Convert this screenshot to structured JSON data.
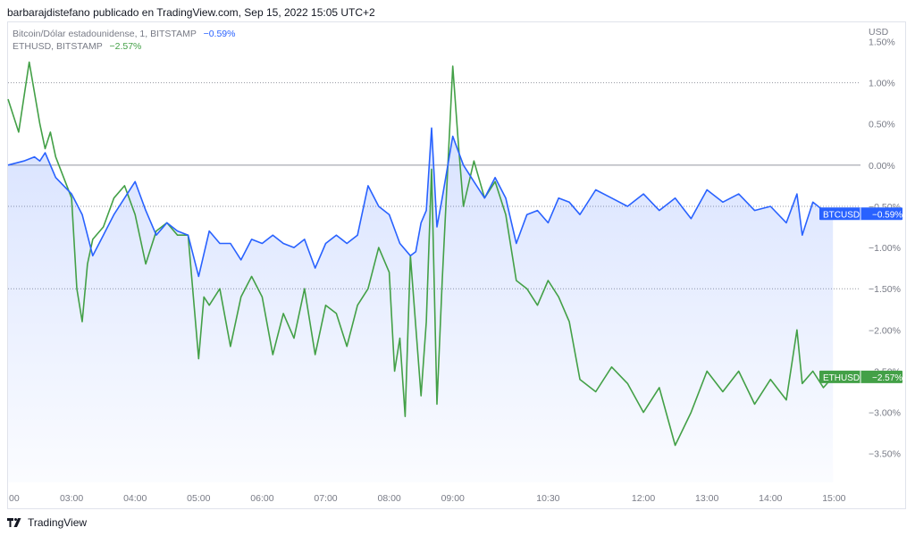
{
  "header": {
    "text": "barbarajdistefano publicado en TradingView.com, Sep 15, 2022 15:05 UTC+2"
  },
  "footer": {
    "brand": "TradingView",
    "logo_icon": "tradingview-logo-icon"
  },
  "legend": [
    {
      "label": "Bitcoin/Dólar estadounidense, 1, BITSTAMP",
      "value": "−0.59%",
      "value_color": "#2962ff"
    },
    {
      "label": "ETHUSD, BITSTAMP",
      "value": "−2.57%",
      "value_color": "#43a047"
    }
  ],
  "chart_data": {
    "type": "line",
    "yunit": "USD",
    "ylim": [
      -3.85,
      1.7
    ],
    "yticks": [
      1.5,
      1.0,
      0.5,
      0.0,
      -0.5,
      -1.0,
      -1.5,
      -2.0,
      -2.5,
      -3.0,
      -3.5
    ],
    "ytick_labels": [
      "1.50%",
      "1.00%",
      "0.50%",
      "0.00%",
      "−0.50%",
      "−1.00%",
      "−1.50%",
      "−2.00%",
      "−2.50%",
      "−3.00%",
      "−3.50%"
    ],
    "xlim": [
      "02:00",
      "15:25"
    ],
    "xticks": [
      "03:00",
      "04:00",
      "05:00",
      "06:00",
      "07:00",
      "08:00",
      "09:00",
      "10:30",
      "12:00",
      "13:00",
      "14:00",
      "15:00"
    ],
    "xticks_partial": [
      "00"
    ],
    "dotted_gridlines": [
      1.0,
      -0.5,
      -1.5
    ],
    "zero_line": 0.0,
    "series": [
      {
        "name": "BTCUSD",
        "color": "#2962ff",
        "last_value_label": "−0.59%",
        "x": [
          "02:00",
          "02:15",
          "02:25",
          "02:30",
          "02:35",
          "02:45",
          "03:00",
          "03:10",
          "03:20",
          "03:30",
          "03:40",
          "03:50",
          "04:00",
          "04:10",
          "04:20",
          "04:30",
          "04:40",
          "04:50",
          "05:00",
          "05:10",
          "05:20",
          "05:30",
          "05:40",
          "05:50",
          "06:00",
          "06:10",
          "06:20",
          "06:30",
          "06:40",
          "06:50",
          "07:00",
          "07:10",
          "07:20",
          "07:30",
          "07:40",
          "07:50",
          "08:00",
          "08:10",
          "08:20",
          "08:25",
          "08:30",
          "08:35",
          "08:40",
          "08:45",
          "08:50",
          "09:00",
          "09:10",
          "09:20",
          "09:30",
          "09:40",
          "09:50",
          "10:00",
          "10:10",
          "10:20",
          "10:30",
          "10:40",
          "10:50",
          "11:00",
          "11:15",
          "11:30",
          "11:45",
          "12:00",
          "12:15",
          "12:30",
          "12:45",
          "13:00",
          "13:15",
          "13:30",
          "13:45",
          "14:00",
          "14:15",
          "14:25",
          "14:30",
          "14:40",
          "14:50",
          "14:59"
        ],
        "values": [
          0.0,
          0.05,
          0.1,
          0.05,
          0.15,
          -0.15,
          -0.35,
          -0.6,
          -1.1,
          -0.85,
          -0.6,
          -0.4,
          -0.2,
          -0.55,
          -0.85,
          -0.7,
          -0.8,
          -0.85,
          -1.35,
          -0.8,
          -0.95,
          -0.95,
          -1.15,
          -0.9,
          -0.95,
          -0.85,
          -0.95,
          -1.0,
          -0.9,
          -1.25,
          -0.95,
          -0.85,
          -0.95,
          -0.85,
          -0.25,
          -0.5,
          -0.6,
          -0.95,
          -1.1,
          -1.05,
          -0.7,
          -0.55,
          0.45,
          -0.75,
          -0.4,
          0.35,
          0.0,
          -0.2,
          -0.4,
          -0.15,
          -0.4,
          -0.95,
          -0.6,
          -0.55,
          -0.7,
          -0.4,
          -0.45,
          -0.6,
          -0.3,
          -0.4,
          -0.5,
          -0.35,
          -0.55,
          -0.4,
          -0.65,
          -0.3,
          -0.45,
          -0.35,
          -0.55,
          -0.5,
          -0.7,
          -0.35,
          -0.85,
          -0.45,
          -0.55,
          -0.59
        ]
      },
      {
        "name": "ETHUSD",
        "color": "#43a047",
        "last_value_label": "−2.57%",
        "x": [
          "02:00",
          "02:10",
          "02:20",
          "02:30",
          "02:35",
          "02:40",
          "02:45",
          "03:00",
          "03:05",
          "03:10",
          "03:15",
          "03:20",
          "03:30",
          "03:40",
          "03:50",
          "04:00",
          "04:10",
          "04:20",
          "04:30",
          "04:40",
          "04:50",
          "05:00",
          "05:05",
          "05:10",
          "05:20",
          "05:30",
          "05:40",
          "05:50",
          "06:00",
          "06:10",
          "06:20",
          "06:30",
          "06:40",
          "06:50",
          "07:00",
          "07:10",
          "07:20",
          "07:30",
          "07:40",
          "07:50",
          "08:00",
          "08:05",
          "08:10",
          "08:15",
          "08:20",
          "08:30",
          "08:35",
          "08:40",
          "08:45",
          "08:50",
          "09:00",
          "09:05",
          "09:10",
          "09:20",
          "09:30",
          "09:40",
          "09:50",
          "10:00",
          "10:10",
          "10:20",
          "10:30",
          "10:40",
          "10:50",
          "11:00",
          "11:15",
          "11:30",
          "11:45",
          "12:00",
          "12:15",
          "12:30",
          "12:45",
          "13:00",
          "13:15",
          "13:30",
          "13:45",
          "14:00",
          "14:15",
          "14:25",
          "14:30",
          "14:40",
          "14:50",
          "14:59"
        ],
        "values": [
          0.8,
          0.4,
          1.25,
          0.5,
          0.2,
          0.4,
          0.1,
          -0.4,
          -1.5,
          -1.9,
          -1.2,
          -0.9,
          -0.75,
          -0.4,
          -0.25,
          -0.6,
          -1.2,
          -0.8,
          -0.7,
          -0.85,
          -0.85,
          -2.35,
          -1.6,
          -1.7,
          -1.5,
          -2.2,
          -1.6,
          -1.35,
          -1.6,
          -2.3,
          -1.8,
          -2.1,
          -1.5,
          -2.3,
          -1.7,
          -1.8,
          -2.2,
          -1.7,
          -1.5,
          -1.0,
          -1.3,
          -2.5,
          -2.1,
          -3.05,
          -1.1,
          -2.8,
          -1.9,
          -0.05,
          -2.9,
          -1.4,
          1.2,
          0.3,
          -0.5,
          0.05,
          -0.4,
          -0.2,
          -0.6,
          -1.4,
          -1.5,
          -1.7,
          -1.4,
          -1.6,
          -1.9,
          -2.6,
          -2.75,
          -2.45,
          -2.65,
          -3.0,
          -2.7,
          -3.4,
          -3.0,
          -2.5,
          -2.75,
          -2.5,
          -2.9,
          -2.6,
          -2.85,
          -2.0,
          -2.65,
          -2.5,
          -2.7,
          -2.57
        ]
      }
    ]
  }
}
